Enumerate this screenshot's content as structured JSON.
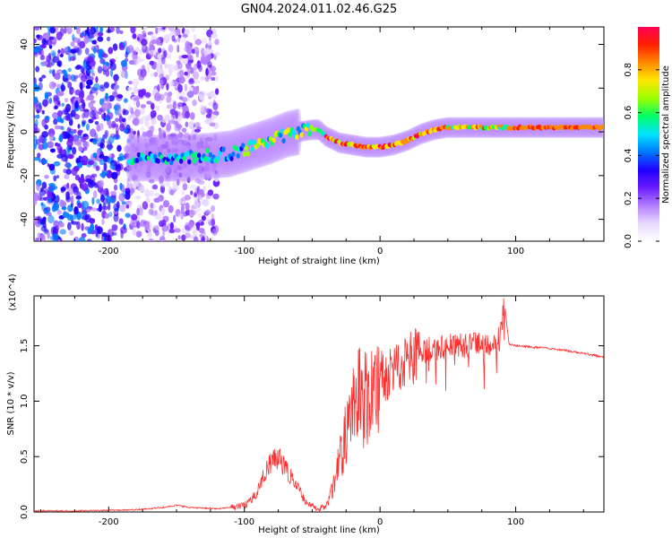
{
  "title": "GN04.2024.011.02.46.G25",
  "chart_data": [
    {
      "type": "heatmap",
      "xlabel": "Height of straight line (km)",
      "ylabel": "Frequency (Hz)",
      "xlim": [
        -255,
        165
      ],
      "ylim": [
        -50,
        48
      ],
      "xticks": [
        -200,
        -100,
        0,
        100
      ],
      "yticks": [
        -40,
        -20,
        0,
        20,
        40
      ],
      "colorbar": {
        "label": "Normalized spectral amplitude",
        "range": [
          0,
          1
        ],
        "ticks": [
          "0.0",
          "0.2",
          "0.4",
          "0.6",
          "0.8"
        ],
        "colors": [
          "#ffffff",
          "#e8d8ff",
          "#b27cff",
          "#6a1bff",
          "#1f00ff",
          "#0079ff",
          "#00e5ff",
          "#00ff66",
          "#9cff00",
          "#ffe600",
          "#ff8a00",
          "#ff1f00",
          "#ff0055"
        ]
      },
      "ridge": {
        "x": [
          -185,
          -165,
          -145,
          -125,
          -110,
          -95,
          -80,
          -68,
          -60,
          -50,
          -45,
          -40,
          -30,
          -20,
          -10,
          0,
          10,
          20,
          30,
          40,
          50,
          60,
          70,
          80,
          90,
          100,
          120,
          140,
          165
        ],
        "frequency": [
          -12,
          -12,
          -12,
          -11,
          -10,
          -7,
          -4,
          -1,
          0,
          1,
          1,
          -2,
          -5,
          -6,
          -7,
          -7,
          -6,
          -4,
          -1,
          1,
          2,
          2,
          2,
          2,
          2,
          2,
          2,
          2,
          2
        ]
      },
      "grid": false,
      "grid_label": "off"
    },
    {
      "type": "line",
      "xlabel": "Height of straight line (km)",
      "ylabel": "SNR (10 * v/v)",
      "y_multiplier": "(x10^4)",
      "xlim": [
        -255,
        165
      ],
      "ylim": [
        0,
        1.95
      ],
      "xticks": [
        -200,
        -100,
        0,
        100
      ],
      "yticks": [
        "0.0",
        "0.5",
        "1.0",
        "1.5"
      ],
      "series": [
        {
          "color": "#ff3030",
          "x": [
            -255,
            -230,
            -200,
            -180,
            -160,
            -150,
            -140,
            -120,
            -110,
            -100,
            -95,
            -90,
            -85,
            -80,
            -75,
            -70,
            -65,
            -60,
            -55,
            -50,
            -45,
            -40,
            -35,
            -30,
            -25,
            -20,
            -15,
            -10,
            -5,
            0,
            5,
            10,
            15,
            20,
            25,
            30,
            40,
            50,
            60,
            70,
            80,
            88,
            92,
            95,
            100,
            120,
            140,
            165
          ],
          "y": [
            0.01,
            0.01,
            0.015,
            0.02,
            0.04,
            0.06,
            0.04,
            0.03,
            0.04,
            0.06,
            0.1,
            0.2,
            0.35,
            0.45,
            0.5,
            0.4,
            0.3,
            0.2,
            0.1,
            0.05,
            0.03,
            0.05,
            0.2,
            0.45,
            0.7,
            0.9,
            1.05,
            1.0,
            1.1,
            1.25,
            1.2,
            1.35,
            1.3,
            1.42,
            1.4,
            1.45,
            1.48,
            1.5,
            1.5,
            1.5,
            1.5,
            1.55,
            1.85,
            1.52,
            1.5,
            1.48,
            1.45,
            1.4
          ]
        }
      ],
      "grid": false,
      "grid_label": "off"
    }
  ]
}
